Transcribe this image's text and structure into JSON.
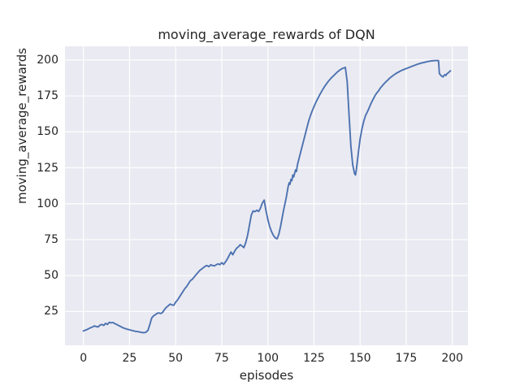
{
  "chart_data": {
    "type": "line",
    "title": "moving_average_rewards of DQN",
    "xlabel": "episodes",
    "ylabel": "moving_average_rewards",
    "xlim": [
      -10,
      208.5
    ],
    "ylim": [
      1.5,
      209.5
    ],
    "x_ticks": [
      0,
      25,
      50,
      75,
      100,
      125,
      150,
      175,
      200
    ],
    "y_ticks": [
      25,
      50,
      75,
      100,
      125,
      150,
      175,
      200
    ],
    "grid": true,
    "legend_position": "none",
    "style": {
      "line_color": "#4c72b0",
      "line_width": 1.9,
      "plot_background": "#eaeaf2",
      "grid_color": "#ffffff",
      "figure_background": "#ffffff",
      "text_color": "#262626"
    },
    "series": [
      {
        "name": "moving_average_rewards",
        "x": [
          0,
          1,
          2,
          3,
          4,
          5,
          6,
          7,
          8,
          9,
          10,
          11,
          12,
          13,
          14,
          15,
          16,
          17,
          18,
          19,
          20,
          21,
          22,
          23,
          24,
          25,
          26,
          27,
          28,
          29,
          30,
          31,
          32,
          33,
          34,
          35,
          36,
          37,
          38,
          39,
          40,
          41,
          42,
          43,
          44,
          45,
          46,
          47,
          48,
          49,
          50,
          51,
          52,
          53,
          54,
          55,
          56,
          57,
          58,
          59,
          60,
          61,
          62,
          63,
          64,
          65,
          66,
          67,
          68,
          69,
          70,
          71,
          72,
          73,
          74,
          75,
          76,
          77,
          78,
          79,
          80,
          81,
          82,
          83,
          84,
          85,
          86,
          87,
          88,
          89,
          90,
          91,
          92,
          93,
          94,
          95,
          96,
          97,
          98,
          99,
          100,
          101,
          102,
          103,
          104,
          105,
          106,
          107,
          108,
          109,
          110,
          111,
          111.5,
          112,
          112.5,
          113,
          113.5,
          114,
          115,
          115.5,
          116,
          117,
          118,
          119,
          120,
          121,
          122,
          123,
          124,
          125,
          126,
          127,
          128,
          129,
          130,
          131,
          132,
          133,
          134,
          135,
          136,
          137,
          138,
          139,
          140,
          141,
          142,
          143,
          144,
          145,
          146,
          147,
          147.5,
          148,
          149,
          150,
          151,
          152,
          153,
          154,
          155,
          156,
          157,
          158,
          159,
          160,
          161,
          162,
          163,
          164,
          165,
          166,
          167,
          168,
          169,
          170,
          171,
          172,
          173,
          174,
          175,
          176,
          177,
          178,
          179,
          180,
          181,
          182,
          183,
          184,
          185,
          186,
          187,
          188,
          189,
          190,
          191,
          192,
          192.5,
          193,
          194,
          195,
          195.5,
          196,
          196.5,
          197,
          198,
          199
        ],
        "y": [
          11.5,
          12,
          12.5,
          13.2,
          13.8,
          14.3,
          15,
          14.5,
          14.3,
          15.6,
          16,
          15.3,
          16.8,
          16,
          17.5,
          17.1,
          17.4,
          16.6,
          16,
          15.3,
          14.7,
          14,
          13.4,
          13,
          12.6,
          12.3,
          11.9,
          11.6,
          11.3,
          11.1,
          10.9,
          10.6,
          10.4,
          10.3,
          10.7,
          12,
          16,
          20.5,
          22,
          22.8,
          23.8,
          24,
          23.6,
          24.5,
          26.5,
          28,
          29,
          30.2,
          29.6,
          29.4,
          31.5,
          33,
          35,
          37,
          39,
          41,
          42.5,
          44.5,
          46.5,
          47.4,
          49,
          50.5,
          52,
          53.5,
          54.5,
          55.5,
          56.5,
          57,
          56.2,
          57.5,
          57,
          56.8,
          57.5,
          58.2,
          57.6,
          59,
          57.8,
          59.5,
          61.5,
          64,
          66.4,
          64.5,
          67,
          69,
          70,
          71.5,
          70.5,
          69.5,
          73,
          78,
          85,
          92,
          95,
          94.5,
          95.5,
          94.6,
          97,
          100.5,
          102.5,
          95,
          89,
          84,
          80.5,
          78,
          76.2,
          75.6,
          79,
          85,
          92,
          98.5,
          104.5,
          112,
          114.5,
          113.5,
          117,
          116,
          120,
          118.6,
          123.5,
          122.4,
          127,
          132,
          137,
          142,
          147,
          152,
          157,
          161,
          164.5,
          167.5,
          170.5,
          173,
          175.5,
          177.8,
          180,
          182,
          183.8,
          185.5,
          187,
          188.3,
          189.5,
          190.8,
          192,
          193,
          193.8,
          194.4,
          194.8,
          185,
          162,
          140,
          127,
          121,
          120,
          124,
          135,
          145,
          152,
          157.5,
          161.5,
          164,
          167,
          170,
          172.5,
          175,
          177,
          178.5,
          180.5,
          182,
          183.5,
          184.8,
          186,
          187.3,
          188.3,
          189.3,
          190.2,
          191,
          191.7,
          192.4,
          193,
          193.5,
          194,
          194.5,
          195,
          195.5,
          196,
          196.5,
          197,
          197.4,
          197.8,
          198.1,
          198.4,
          198.7,
          199,
          199.2,
          199.4,
          199.5,
          199.6,
          199.6,
          199.6,
          190.5,
          189,
          188.2,
          189.3,
          189.8,
          189.2,
          190.3,
          191.3,
          192.5
        ]
      }
    ]
  }
}
